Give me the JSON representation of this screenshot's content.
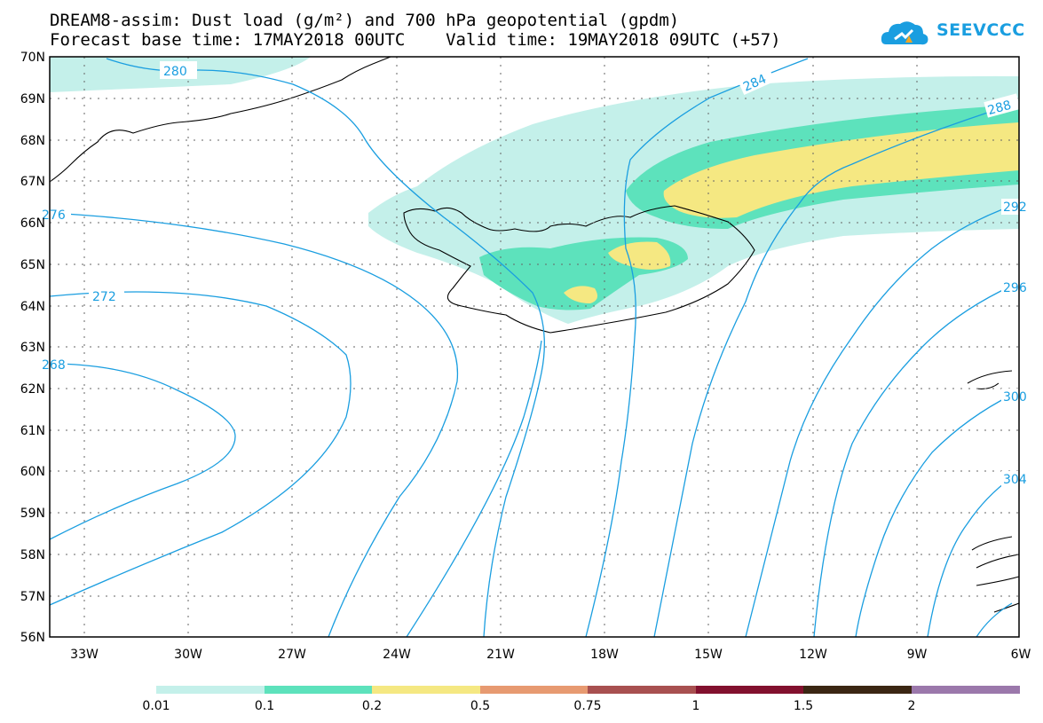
{
  "header": {
    "title_line1": "DREAM8-assim: Dust load (g/m²) and 700 hPa geopotential (gpdm)",
    "title_line2": "Forecast base time: 17MAY2018 00UTC    Valid time: 19MAY2018 09UTC (+57)"
  },
  "logo": {
    "text": "SEEVCCC",
    "icon": "cloud-icon",
    "color": "#1a9ee0"
  },
  "axes": {
    "lat_labels": [
      "70N",
      "69N",
      "68N",
      "67N",
      "66N",
      "65N",
      "64N",
      "63N",
      "62N",
      "61N",
      "60N",
      "59N",
      "58N",
      "57N",
      "56N"
    ],
    "lon_labels": [
      "33W",
      "30W",
      "27W",
      "24W",
      "21W",
      "18W",
      "15W",
      "12W",
      "9W",
      "6W"
    ]
  },
  "contour_labels": [
    "280",
    "284",
    "288",
    "276",
    "272",
    "268",
    "292",
    "296",
    "300",
    "304"
  ],
  "legend": {
    "colors": [
      "#c4f0ea",
      "#5de2bc",
      "#f5e882",
      "#e79a71",
      "#a85050",
      "#82102e",
      "#3b2613",
      "#9b78ab"
    ],
    "labels": [
      "0.01",
      "0.1",
      "0.2",
      "0.5",
      "0.75",
      "1",
      "1.5",
      "2"
    ]
  },
  "line_color": "#1a9ee0"
}
